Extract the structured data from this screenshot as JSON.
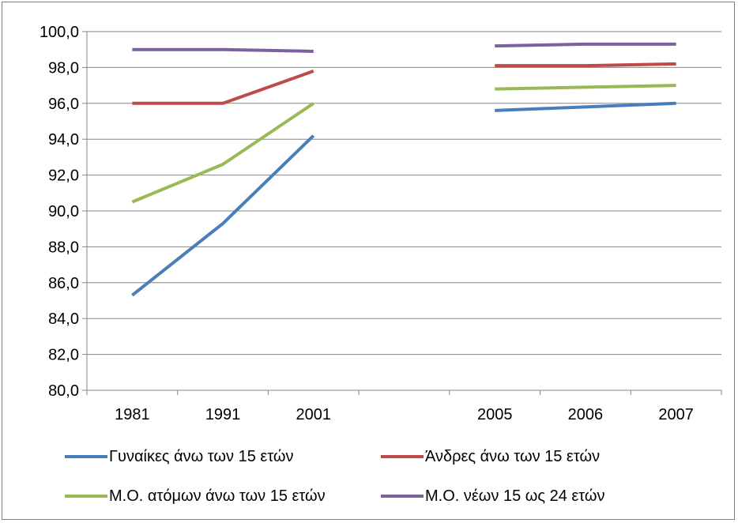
{
  "chart_data": {
    "type": "line",
    "title": "",
    "xlabel": "",
    "ylabel": "",
    "categories": [
      "1981",
      "1991",
      "2001",
      "",
      "2005",
      "2006",
      "2007"
    ],
    "ylim": [
      80,
      100
    ],
    "yticks": [
      "80,0",
      "82,0",
      "84,0",
      "86,0",
      "88,0",
      "90,0",
      "92,0",
      "94,0",
      "96,0",
      "98,0",
      "100,0"
    ],
    "grid": true,
    "legend_position": "bottom",
    "series": [
      {
        "name": "Γυναίκες άνω των 15 ετών",
        "color": "#4a7ebb",
        "values": [
          85.3,
          89.3,
          94.2,
          null,
          95.6,
          95.8,
          96.0
        ]
      },
      {
        "name": "Άνδρες άνω των 15 ετών",
        "color": "#be4b48",
        "values": [
          96.0,
          96.0,
          97.8,
          null,
          98.1,
          98.1,
          98.2
        ]
      },
      {
        "name": "Μ.Ο. ατόμων άνω των 15 ετών",
        "color": "#98b954",
        "values": [
          90.5,
          92.6,
          96.0,
          null,
          96.8,
          96.9,
          97.0
        ]
      },
      {
        "name": "Μ.Ο. νέων 15 ως 24 ετών",
        "color": "#7d60a0",
        "values": [
          99.0,
          99.0,
          98.9,
          null,
          99.2,
          99.3,
          99.3
        ]
      }
    ]
  }
}
